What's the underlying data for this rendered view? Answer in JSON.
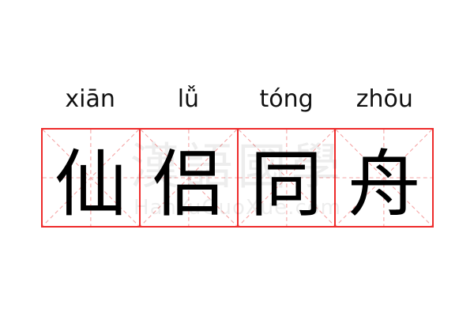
{
  "idiom": {
    "pinyin": [
      "xiān",
      "lǚ",
      "tóng",
      "zhōu"
    ],
    "characters": [
      "仙",
      "侣",
      "同",
      "舟"
    ]
  },
  "watermark": {
    "chinese": "漢語國學",
    "latin": "HanYuGuoXue.com"
  },
  "colors": {
    "grid_border": "#ee2b2b",
    "guide_lines": "#f5a5a5",
    "text": "#000000"
  }
}
